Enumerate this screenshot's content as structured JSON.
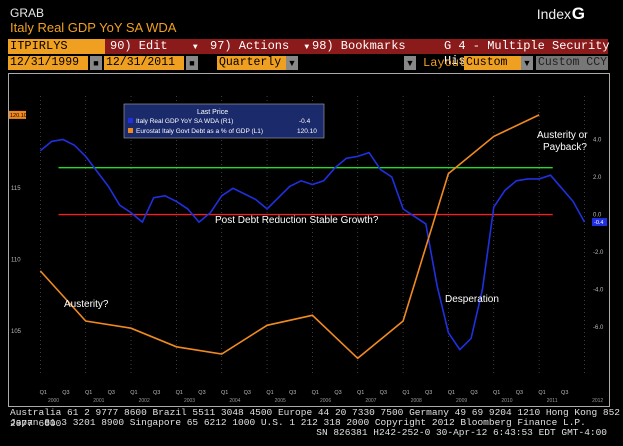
{
  "header": {
    "grab": "GRAB",
    "subtitle": "Italy Real GDP YoY SA WDA",
    "index_label": "Index",
    "index_key": "G"
  },
  "toolbar": {
    "ticker": "ITPIRLYS Index",
    "edit": "90) Edit",
    "actions": "97) Actions",
    "bookmarks": "98) Bookmarks",
    "graph_title": "G 4 - Multiple Security Hist",
    "start_date": "12/31/1999",
    "end_date": "12/31/2011",
    "period": "Quarterly",
    "layout_label": "Layout",
    "layout_value": "Custom",
    "currency": "Custom CCY"
  },
  "footer": {
    "line1": "Australia 61 2 9777 8600 Brazil 5511 3048 4500 Europe 44 20 7330 7500 Germany 49 69 9204 1210 Hong Kong 852 2977 6000",
    "line2": "Japan 81 3 3201 8900          Singapore 65 6212 1000          U.S. 1 212 318 2000          Copyright 2012 Bloomberg Finance L.P.",
    "line3": "SN 826381 H242-252-0 30-Apr-12  6:43:53 EDT  GMT-4:00"
  },
  "chart_data": {
    "type": "line",
    "legend_title": "Last Price",
    "legend_position": "top-left",
    "series": [
      {
        "name": "Italy Real GDP YoY SA WDA  (R1)",
        "last": "-0.4",
        "color": "#2030e0",
        "axis": "right",
        "x": [
          2000.0,
          2000.25,
          2000.5,
          2000.75,
          2001.0,
          2001.25,
          2001.5,
          2001.75,
          2002.0,
          2002.25,
          2002.5,
          2002.75,
          2003.0,
          2003.25,
          2003.5,
          2003.75,
          2004.0,
          2004.25,
          2004.5,
          2004.75,
          2005.0,
          2005.25,
          2005.5,
          2005.75,
          2006.0,
          2006.25,
          2006.5,
          2006.75,
          2007.0,
          2007.25,
          2007.5,
          2007.75,
          2008.0,
          2008.25,
          2008.5,
          2008.75,
          2009.0,
          2009.25,
          2009.5,
          2009.75,
          2010.0,
          2010.25,
          2010.5,
          2010.75,
          2011.0,
          2011.25,
          2011.5,
          2011.75,
          2012.0
        ],
        "values": [
          3.4,
          3.9,
          4.0,
          3.7,
          3.1,
          2.3,
          1.5,
          0.5,
          0.1,
          -0.4,
          0.9,
          1.0,
          0.7,
          0.3,
          -0.4,
          0.1,
          1.0,
          1.4,
          1.1,
          0.8,
          0.3,
          0.9,
          1.5,
          1.8,
          1.6,
          1.8,
          2.5,
          3.0,
          3.1,
          3.3,
          2.4,
          2.0,
          0.3,
          -0.1,
          -0.5,
          -3.8,
          -6.3,
          -7.2,
          -6.6,
          -4.0,
          0.4,
          1.3,
          1.8,
          1.9,
          1.9,
          2.1,
          1.4,
          0.7,
          -0.4
        ]
      },
      {
        "name": "Eurostat Italy Govt Debt as a % of GDP  (L1)",
        "last": "120.10",
        "color": "#f08a20",
        "axis": "left",
        "x": [
          2000,
          2001,
          2002,
          2003,
          2004,
          2005,
          2006,
          2007,
          2008,
          2009,
          2010,
          2011
        ],
        "values": [
          109.2,
          105.7,
          105.2,
          103.9,
          103.4,
          105.4,
          106.1,
          103.1,
          105.7,
          116.0,
          118.6,
          120.1
        ]
      }
    ],
    "reference_lines": [
      {
        "name": "green",
        "value": 2.5,
        "axis": "right",
        "color": "#22dd22"
      },
      {
        "name": "red",
        "value": 0.0,
        "axis": "right",
        "color": "#ee2222"
      }
    ],
    "annotations": [
      "Austerity?",
      "Post Debt Reduction Stable Growth?",
      "Desperation",
      "Austerity or Payback?"
    ],
    "left_axis": {
      "label_top": "120.10",
      "ticks": [
        "115",
        "110",
        "105"
      ],
      "ylim": [
        102,
        121
      ]
    },
    "right_axis": {
      "ticks": [
        "4.0",
        "2.0",
        "0.0",
        "-2.0",
        "-4.0",
        "-6.0"
      ],
      "ylim": [
        -8.5,
        6.0
      ]
    },
    "quarter_labels": [
      "Q1",
      "Q3"
    ],
    "year_labels": [
      "2000",
      "2001",
      "2002",
      "2003",
      "2004",
      "2005",
      "2006",
      "2007",
      "2008",
      "2009",
      "2010",
      "2011",
      "2012"
    ],
    "xlim": [
      1999.75,
      2012.1
    ]
  }
}
